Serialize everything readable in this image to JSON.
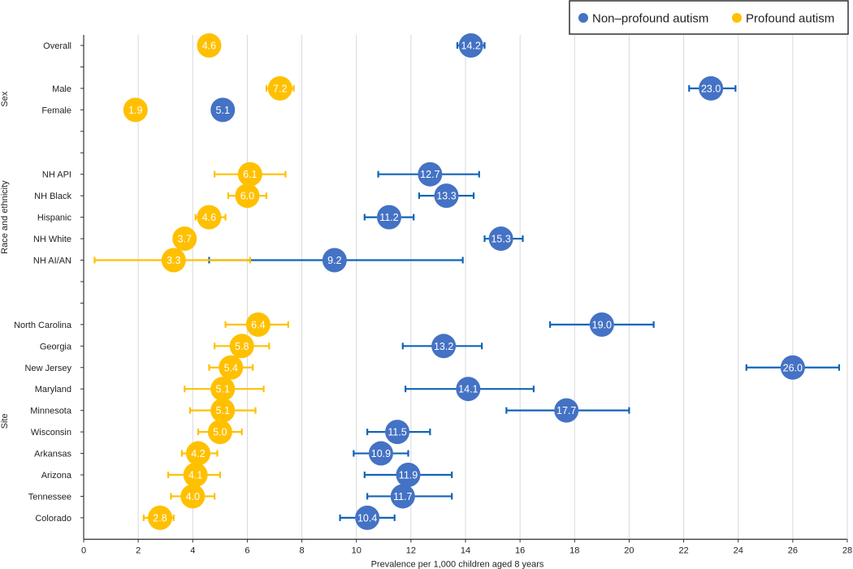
{
  "chart_data": {
    "type": "scatter",
    "subtype": "dot-plot-with-confidence-intervals",
    "title": "",
    "xlabel": "Prevalence per 1,000 children aged 8 years",
    "ylabel": "",
    "xlim": [
      0,
      28
    ],
    "xticks": [
      0,
      2,
      4,
      6,
      8,
      10,
      12,
      14,
      16,
      18,
      20,
      22,
      24,
      26,
      28
    ],
    "grid": "vertical",
    "legend_position": "top-right",
    "legend": [
      {
        "name": "Non–profound autism",
        "color": "#4472C4"
      },
      {
        "name": "Profound autism",
        "color": "#FFC000"
      }
    ],
    "groups": [
      {
        "label": "",
        "rows": [
          "Overall"
        ]
      },
      {
        "label": "Sex",
        "rows": [
          "Male",
          "Female"
        ]
      },
      {
        "label": "Race and ethnicity",
        "rows": [
          "NH API",
          "NH Black",
          "Hispanic",
          "NH White",
          "NH AI/AN"
        ]
      },
      {
        "label": "Site",
        "rows": [
          "North Carolina",
          "Georgia",
          "New Jersey",
          "Maryland",
          "Minnesota",
          "Wisconsin",
          "Arkansas",
          "Arizona",
          "Tennessee",
          "Colorado"
        ]
      }
    ],
    "categories": [
      "Overall",
      "",
      "Male",
      "Female",
      "",
      "",
      "NH API",
      "NH Black",
      "Hispanic",
      "NH White",
      "NH AI/AN",
      "",
      "",
      "North Carolina",
      "Georgia",
      "New Jersey",
      "Maryland",
      "Minnesota",
      "Wisconsin",
      "Arkansas",
      "Arizona",
      "Tennessee",
      "Colorado"
    ],
    "series": [
      {
        "name": "Non–profound autism",
        "color": "#4472C4",
        "errorbar_color": "#0F65B8",
        "points": [
          {
            "category": "Overall",
            "value": 14.2,
            "label": "14.2",
            "ci": [
              13.7,
              14.7
            ]
          },
          {
            "category": "Male",
            "value": 23.0,
            "label": "23.0",
            "ci": [
              22.2,
              23.9
            ]
          },
          {
            "category": "Female",
            "value": 5.1,
            "label": "5.1",
            "ci": [
              4.8,
              5.4
            ]
          },
          {
            "category": "NH API",
            "value": 12.7,
            "label": "12.7",
            "ci": [
              10.8,
              14.5
            ]
          },
          {
            "category": "NH Black",
            "value": 13.3,
            "label": "13.3",
            "ci": [
              12.3,
              14.3
            ]
          },
          {
            "category": "Hispanic",
            "value": 11.2,
            "label": "11.2",
            "ci": [
              10.3,
              12.1
            ]
          },
          {
            "category": "NH White",
            "value": 15.3,
            "label": "15.3",
            "ci": [
              14.7,
              16.1
            ]
          },
          {
            "category": "NH AI/AN",
            "value": 9.2,
            "label": "9.2",
            "ci": [
              4.6,
              13.9
            ]
          },
          {
            "category": "North Carolina",
            "value": 19.0,
            "label": "19.0",
            "ci": [
              17.1,
              20.9
            ]
          },
          {
            "category": "Georgia",
            "value": 13.2,
            "label": "13.2",
            "ci": [
              11.7,
              14.6
            ]
          },
          {
            "category": "New Jersey",
            "value": 26.0,
            "label": "26.0",
            "ci": [
              24.3,
              27.7
            ]
          },
          {
            "category": "Maryland",
            "value": 14.1,
            "label": "14.1",
            "ci": [
              11.8,
              16.5
            ]
          },
          {
            "category": "Minnesota",
            "value": 17.7,
            "label": "17.7",
            "ci": [
              15.5,
              20.0
            ]
          },
          {
            "category": "Wisconsin",
            "value": 11.5,
            "label": "11.5",
            "ci": [
              10.4,
              12.7
            ]
          },
          {
            "category": "Arkansas",
            "value": 10.9,
            "label": "10.9",
            "ci": [
              9.9,
              11.9
            ]
          },
          {
            "category": "Arizona",
            "value": 11.9,
            "label": "11.9",
            "ci": [
              10.3,
              13.5
            ]
          },
          {
            "category": "Tennessee",
            "value": 11.7,
            "label": "11.7",
            "ci": [
              10.4,
              13.5
            ]
          },
          {
            "category": "Colorado",
            "value": 10.4,
            "label": "10.4",
            "ci": [
              9.4,
              11.4
            ]
          }
        ]
      },
      {
        "name": "Profound autism",
        "color": "#FFC000",
        "errorbar_color": "#FFC000",
        "points": [
          {
            "category": "Overall",
            "value": 4.6,
            "label": "4.6",
            "ci": [
              4.4,
              4.8
            ]
          },
          {
            "category": "Male",
            "value": 7.2,
            "label": "7.2",
            "ci": [
              6.7,
              7.7
            ]
          },
          {
            "category": "Female",
            "value": 1.9,
            "label": "1.9",
            "ci": [
              1.7,
              2.1
            ]
          },
          {
            "category": "NH API",
            "value": 6.1,
            "label": "6.1",
            "ci": [
              4.8,
              7.4
            ]
          },
          {
            "category": "NH Black",
            "value": 6.0,
            "label": "6.0",
            "ci": [
              5.3,
              6.7
            ]
          },
          {
            "category": "Hispanic",
            "value": 4.6,
            "label": "4.6",
            "ci": [
              4.1,
              5.2
            ]
          },
          {
            "category": "NH White",
            "value": 3.7,
            "label": "3.7",
            "ci": [
              3.4,
              4.0
            ]
          },
          {
            "category": "NH AI/AN",
            "value": 3.3,
            "label": "3.3",
            "ci": [
              0.4,
              6.1
            ]
          },
          {
            "category": "North Carolina",
            "value": 6.4,
            "label": "6.4",
            "ci": [
              5.2,
              7.5
            ]
          },
          {
            "category": "Georgia",
            "value": 5.8,
            "label": "5.8",
            "ci": [
              4.8,
              6.8
            ]
          },
          {
            "category": "New Jersey",
            "value": 5.4,
            "label": "5.4",
            "ci": [
              4.6,
              6.2
            ]
          },
          {
            "category": "Maryland",
            "value": 5.1,
            "label": "5.1",
            "ci": [
              3.7,
              6.6
            ]
          },
          {
            "category": "Minnesota",
            "value": 5.1,
            "label": "5.1",
            "ci": [
              3.9,
              6.3
            ]
          },
          {
            "category": "Wisconsin",
            "value": 5.0,
            "label": "5.0",
            "ci": [
              4.2,
              5.8
            ]
          },
          {
            "category": "Arkansas",
            "value": 4.2,
            "label": "4.2",
            "ci": [
              3.6,
              4.9
            ]
          },
          {
            "category": "Arizona",
            "value": 4.1,
            "label": "4.1",
            "ci": [
              3.1,
              5.0
            ]
          },
          {
            "category": "Tennessee",
            "value": 4.0,
            "label": "4.0",
            "ci": [
              3.2,
              4.8
            ]
          },
          {
            "category": "Colorado",
            "value": 2.8,
            "label": "2.8",
            "ci": [
              2.2,
              3.3
            ]
          }
        ]
      }
    ]
  }
}
